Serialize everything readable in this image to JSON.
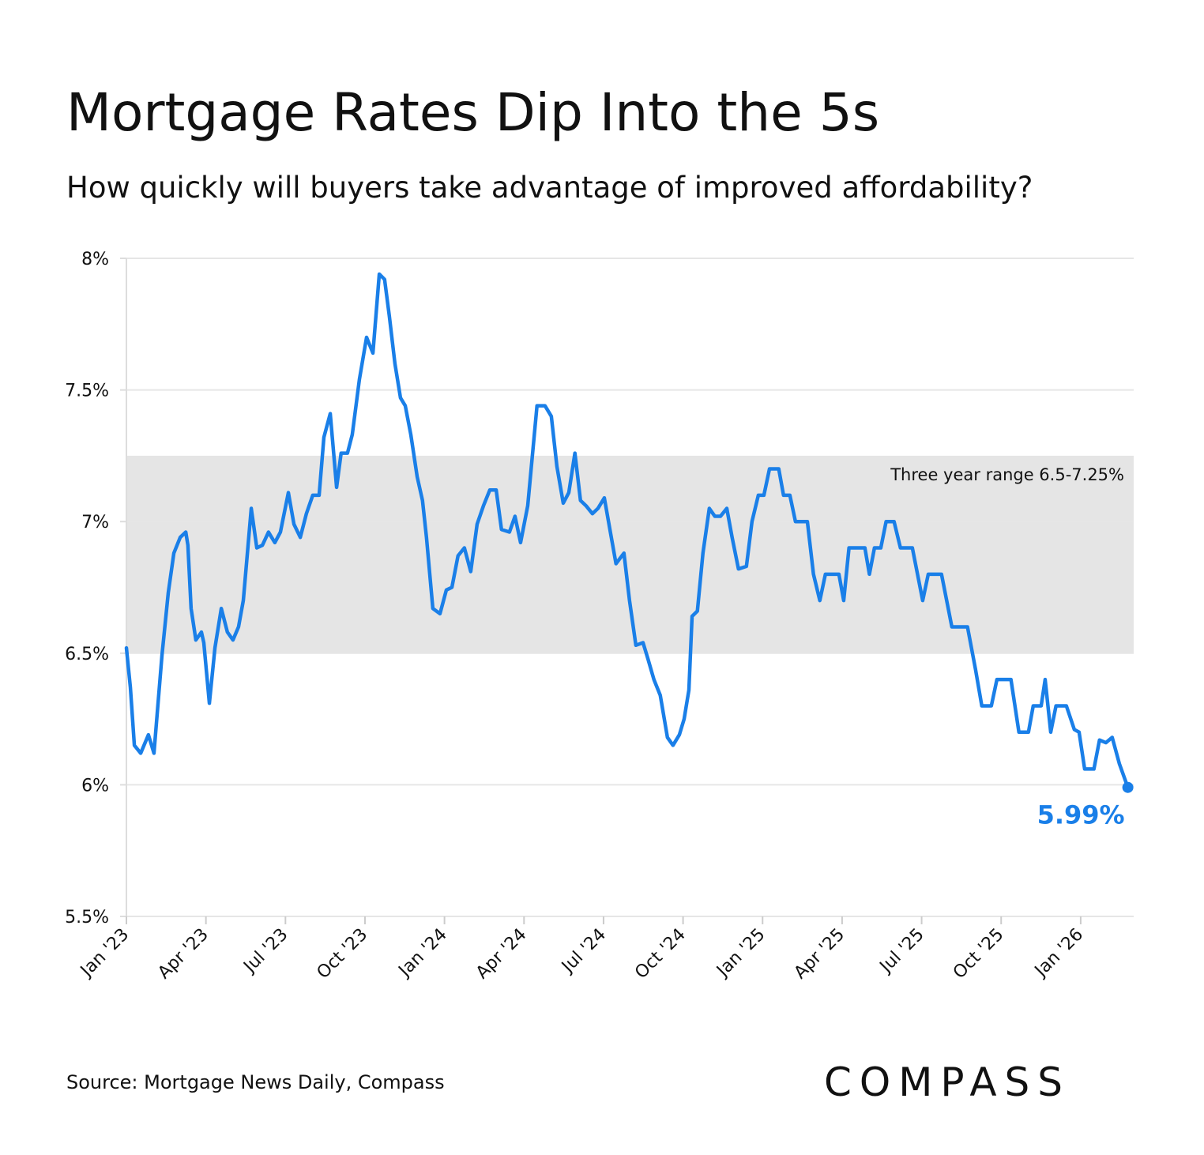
{
  "chart_data": {
    "type": "line",
    "title": "Mortgage Rates Dip Into the 5s",
    "subtitle": "How quickly will buyers take advantage of improved affordability?",
    "source": "Source: Mortgage News Daily, Compass",
    "logo": "COMPASS",
    "color": "#1a7fe8",
    "band": [
      6.5,
      7.25
    ],
    "band_color": "#e5e5e5",
    "band_label": "Three year range 6.5-7.25%",
    "end_label": {
      "value": 5.99,
      "label": "5.99%"
    },
    "grid": true,
    "xlim": [
      0,
      38
    ],
    "xticks": [
      {
        "value": 0,
        "label": "Jan '23"
      },
      {
        "value": 3,
        "label": "Apr '23"
      },
      {
        "value": 6,
        "label": "Jul '23"
      },
      {
        "value": 9,
        "label": "Oct '23"
      },
      {
        "value": 12,
        "label": "Jan '24"
      },
      {
        "value": 15,
        "label": "Apr '24"
      },
      {
        "value": 18,
        "label": "Jul '24"
      },
      {
        "value": 21,
        "label": "Oct '24"
      },
      {
        "value": 24,
        "label": "Jan '25"
      },
      {
        "value": 27,
        "label": "Apr '25"
      },
      {
        "value": 30,
        "label": "Jul '25"
      },
      {
        "value": 33,
        "label": "Oct '25"
      },
      {
        "value": 36,
        "label": "Jan '26"
      }
    ],
    "ylim": [
      5.5,
      8
    ],
    "yticks": [
      {
        "value": 5.5,
        "label": "5.5%"
      },
      {
        "value": 6,
        "label": "6%"
      },
      {
        "value": 6.5,
        "label": "6.5%"
      },
      {
        "value": 7,
        "label": "7%"
      },
      {
        "value": 7.5,
        "label": "7.5%"
      },
      {
        "value": 8,
        "label": "8%"
      }
    ],
    "x": [
      0,
      0.15,
      0.3,
      0.54,
      0.83,
      1.04,
      1.34,
      1.58,
      1.79,
      2.03,
      2.24,
      2.32,
      2.44,
      2.62,
      2.83,
      2.92,
      3.13,
      3.34,
      3.58,
      3.81,
      4.02,
      4.23,
      4.41,
      4.71,
      4.92,
      5.13,
      5.36,
      5.6,
      5.81,
      6.11,
      6.32,
      6.56,
      6.79,
      7.03,
      7.27,
      7.45,
      7.69,
      7.93,
      8.1,
      8.34,
      8.52,
      8.79,
      9.06,
      9.3,
      9.54,
      9.74,
      9.92,
      10.13,
      10.34,
      10.52,
      10.73,
      10.97,
      11.17,
      11.32,
      11.56,
      11.83,
      12.07,
      12.28,
      12.51,
      12.75,
      12.99,
      13.23,
      13.47,
      13.71,
      13.95,
      14.15,
      14.45,
      14.66,
      14.87,
      15.14,
      15.49,
      15.79,
      16.03,
      16.24,
      16.48,
      16.69,
      16.92,
      17.13,
      17.34,
      17.58,
      17.79,
      18.03,
      18.24,
      18.47,
      18.77,
      18.98,
      19.22,
      19.49,
      19.67,
      19.9,
      20.14,
      20.41,
      20.62,
      20.86,
      21.04,
      21.22,
      21.34,
      21.54,
      21.75,
      21.99,
      22.2,
      22.41,
      22.65,
      22.85,
      23.09,
      23.39,
      23.6,
      23.84,
      24.05,
      24.26,
      24.61,
      24.79,
      25.03,
      25.24,
      25.69,
      25.92,
      26.16,
      26.37,
      26.88,
      27.06,
      27.26,
      27.86,
      28.03,
      28.22,
      28.46,
      28.66,
      28.96,
      29.2,
      29.65,
      30.04,
      30.25,
      30.75,
      31.14,
      31.73,
      32.03,
      32.27,
      32.63,
      32.84,
      33.37,
      33.67,
      34.03,
      34.21,
      34.51,
      34.66,
      34.87,
      35.07,
      35.46,
      35.76,
      35.94,
      36.15,
      36.5,
      36.71,
      36.95,
      37.19,
      37.46,
      37.78
    ],
    "values": [
      6.52,
      6.37,
      6.15,
      6.12,
      6.19,
      6.12,
      6.49,
      6.73,
      6.88,
      6.94,
      6.96,
      6.91,
      6.67,
      6.55,
      6.58,
      6.54,
      6.31,
      6.52,
      6.67,
      6.58,
      6.55,
      6.6,
      6.7,
      7.05,
      6.9,
      6.91,
      6.96,
      6.92,
      6.96,
      7.11,
      6.99,
      6.94,
      7.03,
      7.1,
      7.1,
      7.32,
      7.41,
      7.13,
      7.26,
      7.26,
      7.33,
      7.54,
      7.7,
      7.64,
      7.94,
      7.92,
      7.78,
      7.6,
      7.47,
      7.44,
      7.33,
      7.17,
      7.08,
      6.94,
      6.67,
      6.65,
      6.74,
      6.75,
      6.87,
      6.9,
      6.81,
      6.99,
      7.06,
      7.12,
      7.12,
      6.97,
      6.96,
      7.02,
      6.92,
      7.06,
      7.44,
      7.44,
      7.4,
      7.21,
      7.07,
      7.11,
      7.26,
      7.08,
      7.06,
      7.03,
      7.05,
      7.09,
      6.97,
      6.84,
      6.88,
      6.7,
      6.53,
      6.54,
      6.48,
      6.4,
      6.34,
      6.18,
      6.15,
      6.19,
      6.25,
      6.36,
      6.64,
      6.66,
      6.88,
      7.05,
      7.02,
      7.02,
      7.05,
      6.94,
      6.82,
      6.83,
      7.0,
      7.1,
      7.1,
      7.2,
      7.2,
      7.1,
      7.1,
      7.0,
      7.0,
      6.8,
      6.7,
      6.8,
      6.8,
      6.7,
      6.9,
      6.9,
      6.8,
      6.9,
      6.9,
      7.0,
      7.0,
      6.9,
      6.9,
      6.7,
      6.8,
      6.8,
      6.6,
      6.6,
      6.44,
      6.3,
      6.3,
      6.4,
      6.4,
      6.2,
      6.2,
      6.3,
      6.3,
      6.4,
      6.2,
      6.3,
      6.3,
      6.21,
      6.2,
      6.06,
      6.06,
      6.17,
      6.16,
      6.18,
      6.08,
      5.99
    ]
  }
}
